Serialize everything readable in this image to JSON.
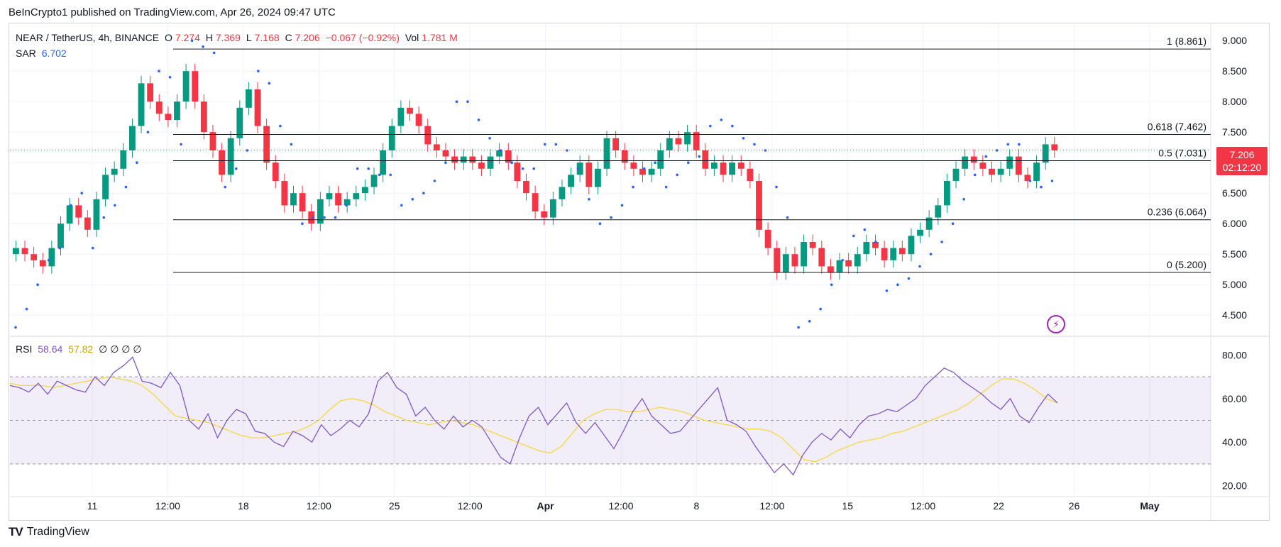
{
  "header": {
    "publish_line": "BeInCrypto1 published on TradingView.com, Apr 26, 2024 09:47 UTC"
  },
  "legend": {
    "symbol": "NEAR / TetherUS, 4h, BINANCE",
    "o_label": "O",
    "o_value": "7.274",
    "h_label": "H",
    "h_value": "7.369",
    "l_label": "L",
    "l_value": "7.168",
    "c_label": "C",
    "c_value": "7.206",
    "change": "−0.067 (−0.92%)",
    "vol_label": "Vol",
    "vol_value": "1.781 M",
    "sar_label": "SAR",
    "sar_value": "6.702",
    "rsi_label": "RSI",
    "rsi_value": "58.64",
    "rsi_ma_value": "57.82",
    "rsi_extra": "∅  ∅  ∅  ∅"
  },
  "price_badge": {
    "price": "7.206",
    "countdown": "02:12:20"
  },
  "footer": {
    "brand": "TradingView"
  },
  "colors": {
    "up": "#089981",
    "down": "#f23645",
    "sar": "#2962ff",
    "rsi": "#7e57c2",
    "rsi_ma": "#f5d742",
    "band": "#7e57c2"
  },
  "chart_data": {
    "type": "candlestick",
    "title": "NEAR / TetherUS, 4h, BINANCE",
    "price_axis": {
      "min": 4.2,
      "max": 9.2,
      "ticks": [
        "9.000",
        "8.500",
        "8.000",
        "7.500",
        "7.000",
        "6.500",
        "6.000",
        "5.500",
        "5.000",
        "4.500"
      ]
    },
    "x_ticks": [
      "11",
      "12:00",
      "18",
      "12:00",
      "25",
      "12:00",
      "Apr",
      "12:00",
      "8",
      "12:00",
      "15",
      "12:00",
      "22",
      "26",
      "May"
    ],
    "fib_levels": [
      {
        "label": "1 (8.861)",
        "value": 8.861
      },
      {
        "label": "0.618 (7.462)",
        "value": 7.462
      },
      {
        "label": "0.5 (7.031)",
        "value": 7.031
      },
      {
        "label": "0.236 (6.064)",
        "value": 6.064
      },
      {
        "label": "0 (5.200)",
        "value": 5.2
      }
    ],
    "last_price": 7.206,
    "close_series": [
      5.6,
      5.5,
      5.4,
      5.3,
      5.6,
      6.0,
      6.3,
      6.1,
      5.9,
      6.4,
      6.8,
      6.9,
      7.2,
      7.6,
      8.3,
      8.0,
      7.8,
      7.7,
      8.0,
      8.5,
      8.0,
      7.5,
      7.2,
      6.8,
      7.4,
      7.9,
      8.2,
      7.6,
      7.0,
      6.7,
      6.3,
      6.5,
      6.2,
      6.0,
      6.4,
      6.5,
      6.3,
      6.4,
      6.5,
      6.6,
      6.8,
      7.2,
      7.6,
      7.9,
      7.8,
      7.6,
      7.3,
      7.2,
      7.1,
      7.0,
      7.1,
      7.0,
      6.9,
      7.1,
      7.2,
      7.0,
      6.7,
      6.5,
      6.2,
      6.1,
      6.4,
      6.6,
      6.8,
      7.0,
      6.6,
      6.9,
      7.4,
      7.2,
      7.0,
      6.9,
      6.8,
      6.9,
      7.2,
      7.4,
      7.3,
      7.5,
      7.2,
      6.9,
      7.0,
      6.8,
      7.0,
      6.9,
      6.7,
      5.9,
      5.6,
      5.2,
      5.5,
      5.3,
      5.7,
      5.6,
      5.3,
      5.2,
      5.4,
      5.3,
      5.5,
      5.7,
      5.6,
      5.4,
      5.6,
      5.5,
      5.8,
      5.9,
      6.1,
      6.3,
      6.7,
      6.9,
      7.1,
      7.0,
      6.9,
      6.8,
      6.9,
      7.1,
      6.8,
      6.7,
      7.0,
      7.3,
      7.2
    ],
    "sar_series": [
      4.3,
      4.6,
      5.0,
      5.4,
      5.6,
      6.3,
      6.5,
      5.6,
      6.1,
      6.3,
      6.6,
      7.0,
      7.5,
      8.5,
      8.4,
      7.3,
      9.0,
      8.9,
      8.8,
      6.6,
      6.9,
      7.2,
      8.5,
      8.3,
      7.6,
      7.3,
      6.0,
      6.1,
      6.1,
      6.1,
      6.3,
      6.9,
      6.9,
      6.8,
      6.8,
      6.3,
      6.4,
      6.5,
      6.7,
      7.0,
      8.0,
      8.0,
      7.7,
      7.4,
      7.2,
      7.0,
      6.9,
      6.9,
      7.3,
      7.3,
      7.2,
      6.9,
      6.4,
      6.0,
      6.1,
      6.3,
      6.6,
      6.9,
      7.0,
      6.6,
      6.8,
      7.0,
      7.1,
      7.6,
      7.7,
      7.6,
      7.4,
      7.3,
      7.2,
      6.6,
      6.1,
      4.3,
      4.4,
      4.6,
      5.0,
      5.4,
      5.8,
      5.9,
      5.7,
      4.9,
      5.0,
      5.1,
      5.3,
      5.5,
      5.7,
      6.0,
      6.4,
      6.8,
      7.1,
      7.2,
      7.3,
      7.3,
      6.7,
      6.6,
      6.7
    ],
    "rsi": {
      "axis": {
        "min": 15,
        "max": 85,
        "ticks": [
          "80.00",
          "60.00",
          "40.00",
          "20.00"
        ]
      },
      "bands": [
        70,
        50,
        30
      ],
      "rsi_series": [
        66,
        65,
        63,
        67,
        62,
        68,
        66,
        64,
        63,
        70,
        66,
        72,
        75,
        79,
        68,
        67,
        65,
        72,
        66,
        50,
        46,
        53,
        42,
        50,
        55,
        53,
        45,
        44,
        40,
        38,
        45,
        43,
        40,
        48,
        43,
        46,
        50,
        47,
        53,
        68,
        72,
        65,
        62,
        52,
        56,
        50,
        46,
        52,
        47,
        50,
        47,
        40,
        33,
        30,
        42,
        52,
        56,
        48,
        53,
        58,
        49,
        44,
        49,
        43,
        37,
        45,
        54,
        60,
        52,
        48,
        44,
        45,
        50,
        55,
        60,
        65,
        50,
        48,
        45,
        38,
        32,
        26,
        30,
        25,
        34,
        40,
        44,
        41,
        46,
        42,
        48,
        52,
        53,
        55,
        54,
        57,
        60,
        66,
        70,
        74,
        72,
        68,
        65,
        62,
        58,
        55,
        60,
        52,
        49,
        56,
        62,
        58
      ],
      "ma_series": [
        67,
        66,
        66,
        66,
        65,
        66,
        67,
        68,
        69,
        70,
        69,
        68,
        66,
        62,
        57,
        52,
        51,
        50,
        49,
        47,
        45,
        43,
        42,
        42,
        43,
        44,
        45,
        47,
        50,
        55,
        59,
        60,
        59,
        57,
        54,
        52,
        50,
        49,
        48,
        49,
        50,
        49,
        48,
        46,
        44,
        42,
        40,
        38,
        36,
        35,
        38,
        44,
        50,
        53,
        55,
        55,
        54,
        54,
        55,
        56,
        55,
        54,
        52,
        50,
        49,
        48,
        47,
        46,
        46,
        45,
        42,
        37,
        32,
        31,
        33,
        36,
        38,
        40,
        41,
        42,
        44,
        45,
        47,
        49,
        51,
        53,
        55,
        58,
        62,
        66,
        69,
        69,
        67,
        64,
        60,
        58
      ]
    }
  }
}
